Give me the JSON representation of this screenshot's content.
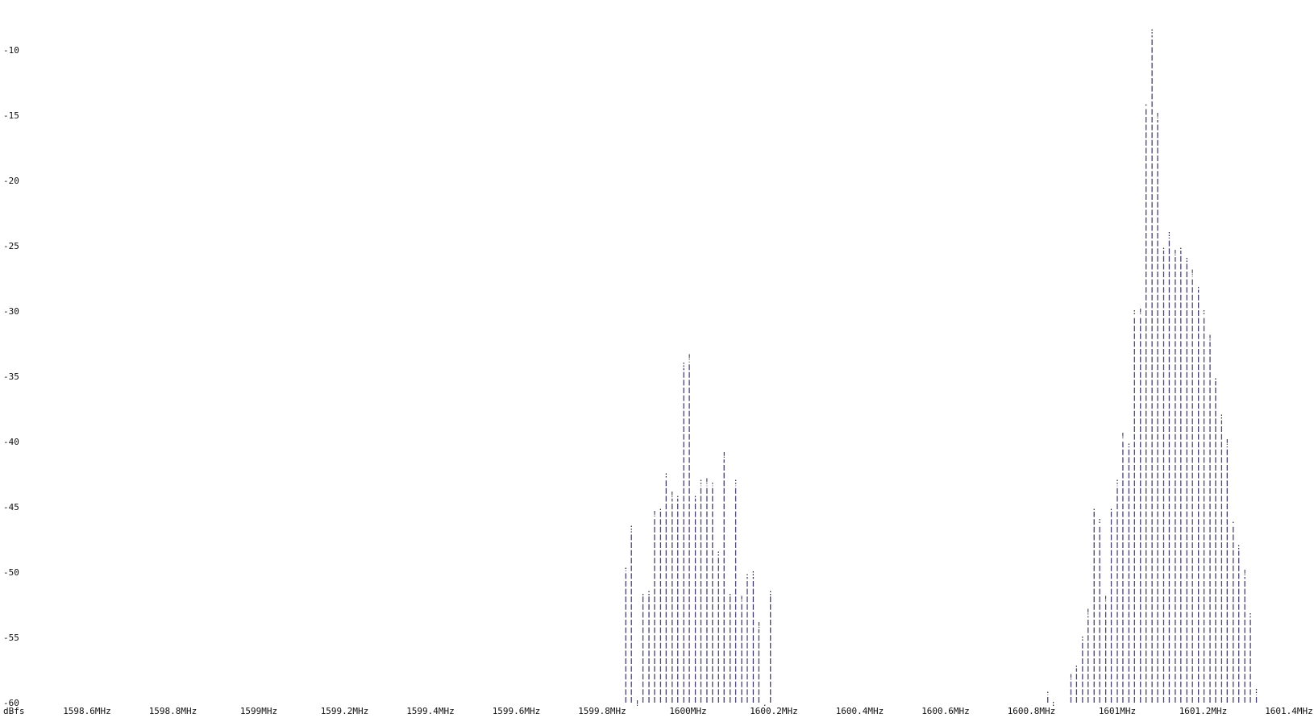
{
  "chart_data": {
    "type": "bar",
    "style": "ascii-art spectrum",
    "colors": {
      "bars": "#4a3f7a",
      "text": "#111111",
      "background": "#ffffff"
    },
    "y_unit": "dBfs",
    "ylim": [
      -60,
      -8
    ],
    "xlim": [
      1598.45,
      1601.42
    ],
    "y_ticks": [
      {
        "value": -10,
        "label": "-10"
      },
      {
        "value": -15,
        "label": "-15"
      },
      {
        "value": -20,
        "label": "-20"
      },
      {
        "value": -25,
        "label": "-25"
      },
      {
        "value": -30,
        "label": "-30"
      },
      {
        "value": -35,
        "label": "-35"
      },
      {
        "value": -40,
        "label": "-40"
      },
      {
        "value": -45,
        "label": "-45"
      },
      {
        "value": -50,
        "label": "-50"
      },
      {
        "value": -55,
        "label": "-55"
      },
      {
        "value": -60,
        "label": "-60"
      }
    ],
    "x_ticks": [
      {
        "value": 1598.6,
        "label": "1598.6MHz"
      },
      {
        "value": 1598.8,
        "label": "1598.8MHz"
      },
      {
        "value": 1599.0,
        "label": "1599MHz"
      },
      {
        "value": 1599.2,
        "label": "1599.2MHz"
      },
      {
        "value": 1599.4,
        "label": "1599.4MHz"
      },
      {
        "value": 1599.6,
        "label": "1599.6MHz"
      },
      {
        "value": 1599.8,
        "label": "1599.8MHz"
      },
      {
        "value": 1600.0,
        "label": "1600MHz"
      },
      {
        "value": 1600.2,
        "label": "1600.2MHz"
      },
      {
        "value": 1600.4,
        "label": "1600.4MHz"
      },
      {
        "value": 1600.6,
        "label": "1600.6MHz"
      },
      {
        "value": 1600.8,
        "label": "1600.8MHz"
      },
      {
        "value": 1601.0,
        "label": "1601MHz"
      },
      {
        "value": 1601.2,
        "label": "1601.2MHz"
      },
      {
        "value": 1601.4,
        "label": "1601.4MHz"
      }
    ],
    "series": [
      {
        "x": [
          1599.855,
          1599.868,
          1599.882,
          1599.895,
          1599.909,
          1599.922,
          1599.936,
          1599.949,
          1599.963,
          1599.976,
          1599.99,
          1600.003,
          1600.017,
          1600.03,
          1600.044,
          1600.057,
          1600.071,
          1600.084,
          1600.098,
          1600.111,
          1600.125,
          1600.138,
          1600.152,
          1600.165,
          1600.179,
          1600.192
        ],
        "values": [
          -49.5,
          -46.5,
          -60,
          -51.5,
          -51.5,
          -45.5,
          -45,
          -42.5,
          -44,
          -44,
          -34,
          -33.5,
          -44,
          -43,
          -43,
          -43,
          -48.5,
          -41,
          -51.5,
          -43,
          -52,
          -50,
          -50,
          -54,
          -60,
          -51.5
        ]
      },
      {
        "x": [
          1600.838,
          1600.851,
          1600.892,
          1600.905,
          1600.919,
          1600.932,
          1600.946,
          1600.959,
          1600.973,
          1600.986,
          1601.0,
          1601.013,
          1601.027,
          1601.04,
          1601.054,
          1601.067,
          1601.081,
          1601.094,
          1601.108,
          1601.121,
          1601.135,
          1601.148,
          1601.162,
          1601.175,
          1601.189,
          1601.202,
          1601.216,
          1601.229,
          1601.243,
          1601.256,
          1601.27,
          1601.283,
          1601.297,
          1601.31,
          1601.324
        ],
        "values": [
          -59,
          -60,
          -58,
          -57,
          -55,
          -53,
          -45,
          -46,
          -52,
          -45,
          -43,
          -39.5,
          -40,
          -30,
          -30,
          -14,
          -8.5,
          -15,
          -25,
          -24,
          -25.5,
          -25,
          -26,
          -27,
          -28,
          -30,
          -32,
          -35,
          -38,
          -40,
          -46,
          -48,
          -50,
          -53,
          -59
        ]
      }
    ]
  }
}
